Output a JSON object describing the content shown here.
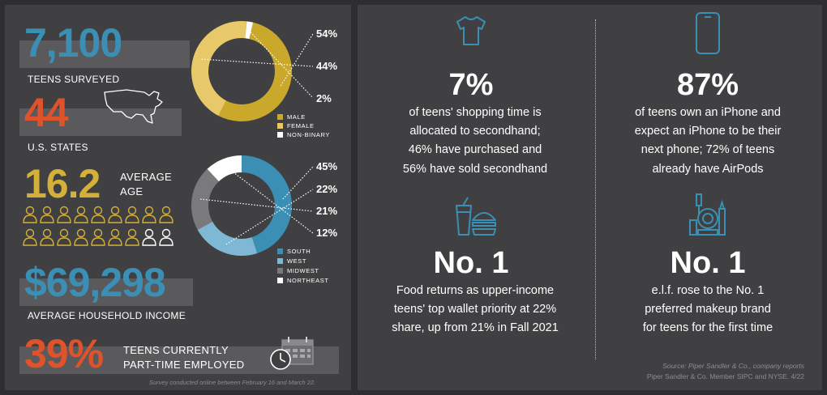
{
  "colors": {
    "background": "#2e2e30",
    "panel": "#404042",
    "band": "#5a5a5c",
    "blue": "#3b8fb5",
    "orange": "#e0532a",
    "gold": "#d4b039",
    "light_gold": "#e8c96a",
    "white": "#ffffff",
    "gray": "#8d8d8f",
    "light_blue": "#7fb8d4",
    "mid_gray": "#7a7a7c"
  },
  "left": {
    "teens_value": "7,100",
    "teens_label": "TEENS SURVEYED",
    "states_value": "44",
    "states_label": "U.S. STATES",
    "age_value": "16.2",
    "age_label_1": "AVERAGE",
    "age_label_2": "AGE",
    "income_value": "$69,298",
    "income_label": "AVERAGE HOUSEHOLD INCOME",
    "employed_value": "39%",
    "employed_label_1": "TEENS CURRENTLY",
    "employed_label_2": "PART-TIME EMPLOYED",
    "survey_note": "Survey conducted online between February 16 and March 22.",
    "icons": [
      "usa-map-icon",
      "person-icon",
      "calendar-icon",
      "clock-icon"
    ],
    "people_highlighted": 16,
    "people_total": 18
  },
  "chart_data": [
    {
      "type": "pie",
      "categories": [
        "MALE",
        "FEMALE",
        "NON-BINARY"
      ],
      "values": [
        54,
        44,
        2
      ],
      "labels": [
        "54%",
        "44%",
        "2%"
      ],
      "colors": [
        "#c9a82c",
        "#e8c96a",
        "#ffffff"
      ],
      "legend": "bottom"
    },
    {
      "type": "pie",
      "categories": [
        "SOUTH",
        "WEST",
        "MIDWEST",
        "NORTHEAST"
      ],
      "values": [
        45,
        22,
        21,
        12
      ],
      "labels": [
        "45%",
        "22%",
        "21%",
        "12%"
      ],
      "colors": [
        "#3b8fb5",
        "#7fb8d4",
        "#7a7a7c",
        "#ffffff"
      ],
      "legend": "bottom"
    }
  ],
  "right": {
    "cards": [
      {
        "icon": "tshirt-icon",
        "stat": "7%",
        "lines": [
          "of teens' shopping time is",
          "allocated to secondhand;",
          "46% have purchased and",
          "56% have sold secondhand"
        ]
      },
      {
        "icon": "smartphone-icon",
        "stat": "87%",
        "lines": [
          "of teens own an iPhone and",
          "expect an iPhone to be their",
          "next phone; 72% of teens",
          "already have AirPods"
        ]
      },
      {
        "icon": "food-drink-icon",
        "stat": "No. 1",
        "lines": [
          "Food returns as upper-income",
          "teens' top wallet priority at 22%",
          "share, up from 21% in Fall 2021"
        ]
      },
      {
        "icon": "makeup-icon",
        "stat": "No. 1",
        "lines": [
          "e.l.f. rose to the No. 1",
          "preferred makeup brand",
          "for teens for the first time"
        ]
      }
    ],
    "source_line_1": "Source: Piper Sandler & Co., company reports",
    "source_line_2": "Piper Sandler & Co. Member SIPC and NYSE. 4/22"
  }
}
